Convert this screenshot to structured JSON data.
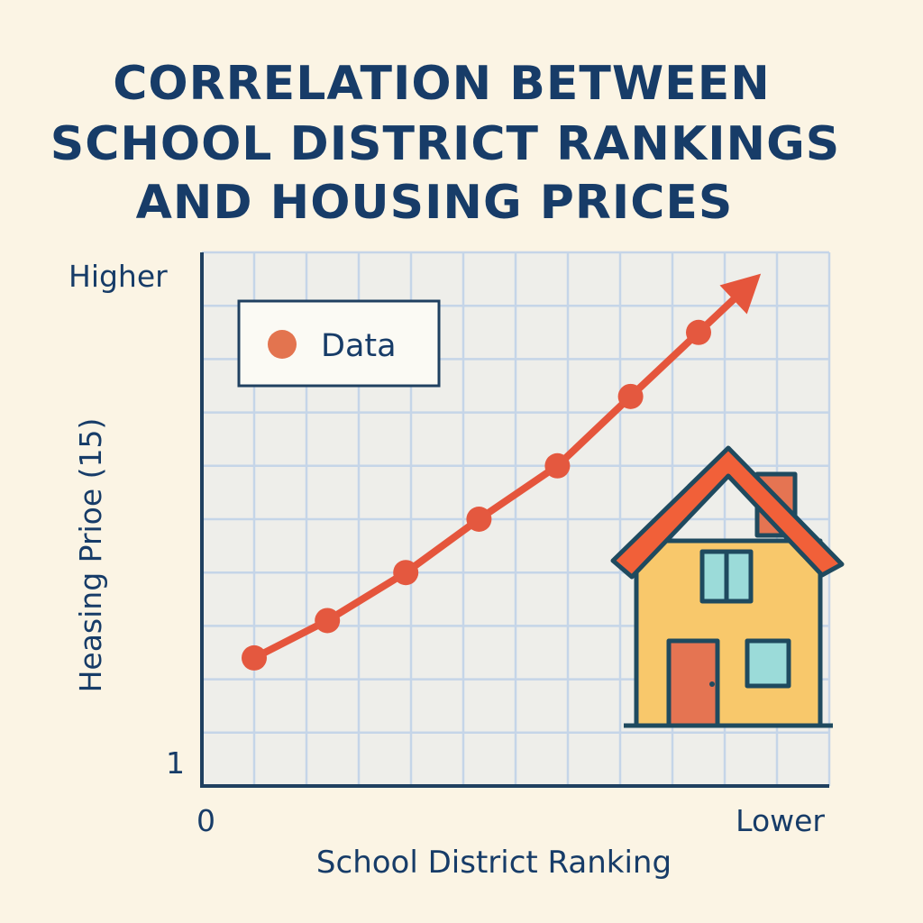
{
  "chart_data": {
    "type": "line",
    "title_lines": [
      "CORRELATION BETWEEN",
      "SCHOOL DISTRICT RANKINGS",
      "AND HOUSING PRICES"
    ],
    "xlabel": "School District Ranking",
    "ylabel": "Heasing Prioe (15)",
    "x_tick_labels": {
      "start": "0",
      "end": "Lower"
    },
    "y_tick_labels": {
      "top": "Higher",
      "bottom": "1"
    },
    "xlim": [
      0,
      12
    ],
    "ylim": [
      0,
      10
    ],
    "grid": true,
    "legend": {
      "position": "top-left",
      "entries": [
        "Data"
      ]
    },
    "series": [
      {
        "name": "Data",
        "x": [
          1,
          2.4,
          3.9,
          5.3,
          6.8,
          8.2,
          9.5
        ],
        "y": [
          2.4,
          3.1,
          4.0,
          5.0,
          6.0,
          7.3,
          8.5
        ]
      }
    ],
    "trend_arrow": true,
    "illustration": "house-icon"
  },
  "colors": {
    "background": "#fbf4e4",
    "title": "#173c68",
    "axis": "#1f4060",
    "plot_bg": "#eeeeea",
    "grid": "#c5d5e8",
    "line": "#e5553c",
    "marker": "#e4583f",
    "legend_marker": "#e3744f",
    "house_wall": "#f8c86b",
    "house_roof": "#f16039",
    "house_outline": "#1f4a5f",
    "house_door": "#e57452",
    "house_window": "#9bdbd9",
    "house_chimney": "#e57452"
  }
}
